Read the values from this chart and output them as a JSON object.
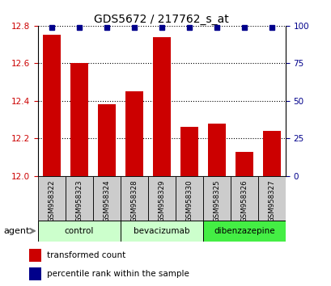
{
  "title": "GDS5672 / 217762_s_at",
  "samples": [
    "GSM958322",
    "GSM958323",
    "GSM958324",
    "GSM958328",
    "GSM958329",
    "GSM958330",
    "GSM958325",
    "GSM958326",
    "GSM958327"
  ],
  "bar_values": [
    12.75,
    12.6,
    12.38,
    12.45,
    12.74,
    12.26,
    12.28,
    12.13,
    12.24
  ],
  "percentile_values": [
    99,
    99,
    99,
    99,
    99,
    99,
    99,
    99,
    99
  ],
  "ylim_left": [
    12.0,
    12.8
  ],
  "ylim_right": [
    0,
    100
  ],
  "yticks_left": [
    12.0,
    12.2,
    12.4,
    12.6,
    12.8
  ],
  "yticks_right": [
    0,
    25,
    50,
    75,
    100
  ],
  "bar_color": "#cc0000",
  "percentile_color": "#00008b",
  "bg_color": "#ffffff",
  "groups": [
    {
      "label": "control",
      "indices": [
        0,
        1,
        2
      ],
      "color": "#ccffcc"
    },
    {
      "label": "bevacizumab",
      "indices": [
        3,
        4,
        5
      ],
      "color": "#ccffcc"
    },
    {
      "label": "dibenzazepine",
      "indices": [
        6,
        7,
        8
      ],
      "color": "#44ee44"
    }
  ],
  "legend_bar_label": "transformed count",
  "legend_pct_label": "percentile rank within the sample",
  "agent_label": "agent",
  "bar_width": 0.65,
  "sample_box_color": "#cccccc",
  "grid_color": "#000000",
  "spine_color": "#000000"
}
